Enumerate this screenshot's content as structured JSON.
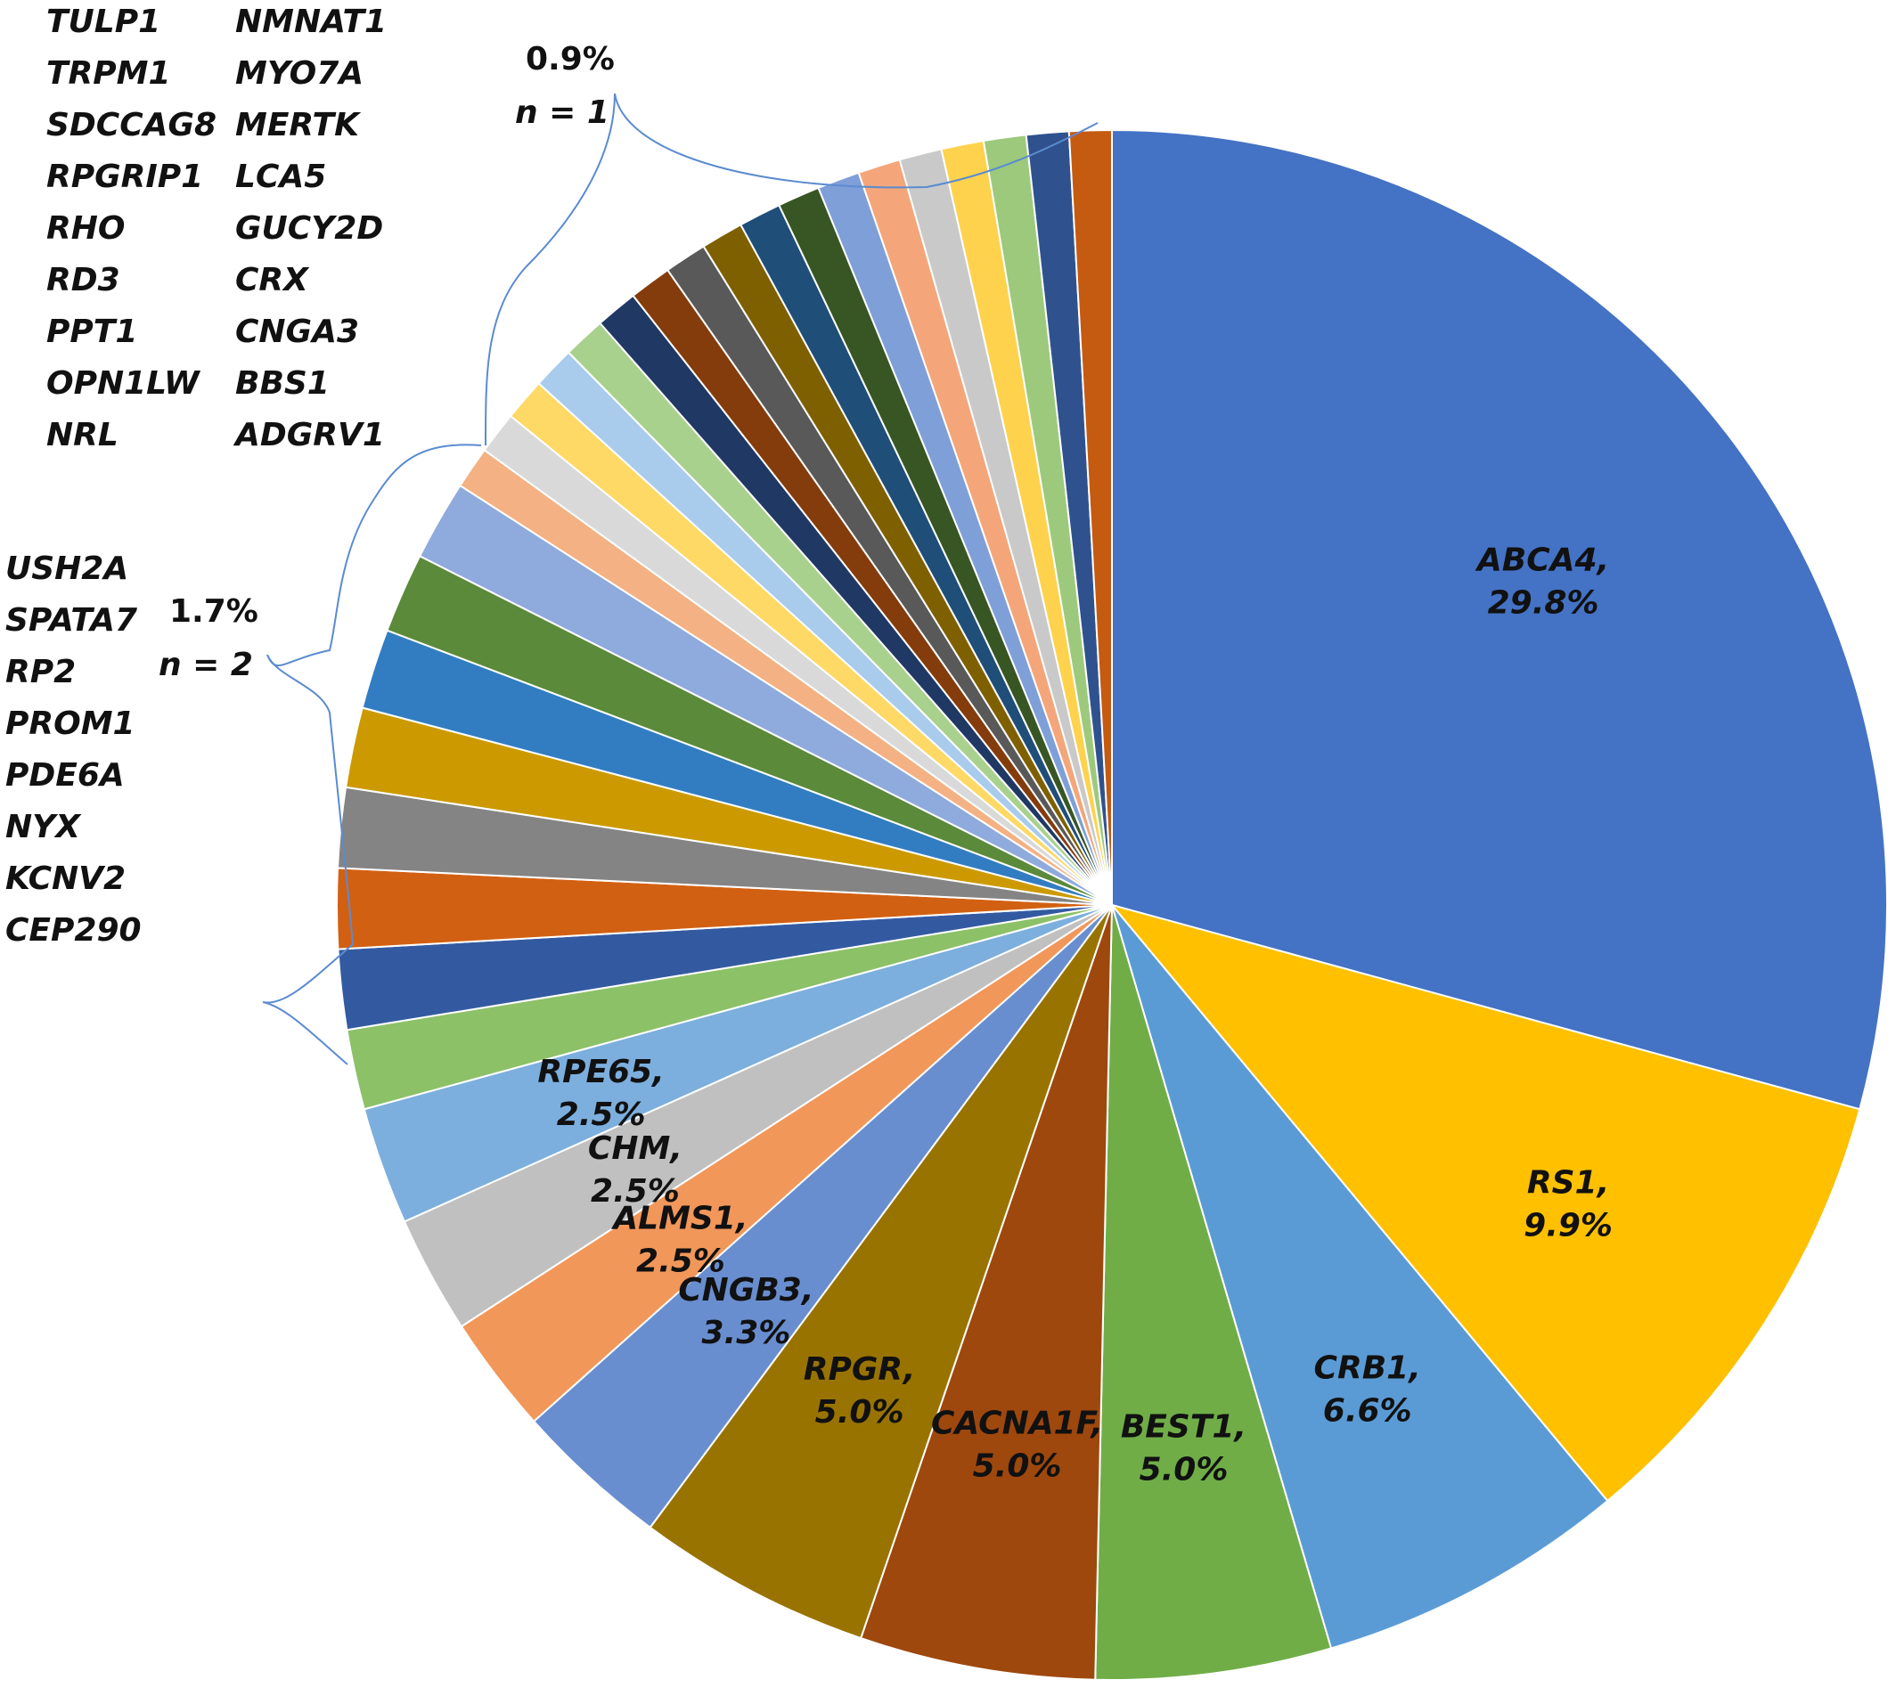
{
  "chart_data": {
    "type": "pie",
    "start_angle_deg": 0,
    "direction": "clockwise",
    "slices": [
      {
        "name": "ABCA4",
        "label": "ABCA4,",
        "pct_label": "29.8%",
        "value": 29.8,
        "color": "#4472c4"
      },
      {
        "name": "RS1",
        "label": "RS1,",
        "pct_label": "9.9%",
        "value": 9.9,
        "color": "#ffc000"
      },
      {
        "name": "CRB1",
        "label": "CRB1,",
        "pct_label": "6.6%",
        "value": 6.6,
        "color": "#5b9bd5"
      },
      {
        "name": "BEST1",
        "label": "BEST1,",
        "pct_label": "5.0%",
        "value": 5.0,
        "color": "#70ad47"
      },
      {
        "name": "CACNA1F",
        "label": "CACNA1F,",
        "pct_label": "5.0%",
        "value": 5.0,
        "color": "#9e480e"
      },
      {
        "name": "RPGR",
        "label": "RPGR,",
        "pct_label": "5.0%",
        "value": 5.0,
        "color": "#997300"
      },
      {
        "name": "CNGB3",
        "label": "CNGB3,",
        "pct_label": "3.3%",
        "value": 3.3,
        "color": "#698ed0"
      },
      {
        "name": "ALMS1",
        "label": "ALMS1,",
        "pct_label": "2.5%",
        "value": 2.5,
        "color": "#f1975a"
      },
      {
        "name": "CHM",
        "label": "CHM,",
        "pct_label": "2.5%",
        "value": 2.5,
        "color": "#c0c0c0"
      },
      {
        "name": "RPE65",
        "label": "RPE65,",
        "pct_label": "2.5%",
        "value": 2.5,
        "color": "#7cafdd"
      },
      {
        "name": "CEP290",
        "value": 1.7,
        "color": "#8cc168"
      },
      {
        "name": "KCNV2",
        "value": 1.7,
        "color": "#335aa1"
      },
      {
        "name": "NYX",
        "value": 1.7,
        "color": "#d26012"
      },
      {
        "name": "PDE6A",
        "value": 1.7,
        "color": "#848484"
      },
      {
        "name": "PROM1",
        "value": 1.7,
        "color": "#cc9a00"
      },
      {
        "name": "RP2",
        "value": 1.7,
        "color": "#327dc2"
      },
      {
        "name": "SPATA7",
        "value": 1.7,
        "color": "#5a8a3a"
      },
      {
        "name": "USH2A",
        "value": 1.7,
        "color": "#8faadc"
      },
      {
        "name": "ADGRV1",
        "value": 0.9,
        "color": "#f4b183"
      },
      {
        "name": "NRL",
        "value": 0.9,
        "color": "#d9d9d9"
      },
      {
        "name": "BBS1",
        "value": 0.9,
        "color": "#ffd966"
      },
      {
        "name": "OPN1LW",
        "value": 0.9,
        "color": "#a9cbec"
      },
      {
        "name": "CNGA3",
        "value": 0.9,
        "color": "#a9d18e"
      },
      {
        "name": "PPT1",
        "value": 0.9,
        "color": "#203864"
      },
      {
        "name": "CRX",
        "value": 0.9,
        "color": "#843c0c"
      },
      {
        "name": "RD3",
        "value": 0.9,
        "color": "#595959"
      },
      {
        "name": "GUCY2D",
        "value": 0.9,
        "color": "#7f6000"
      },
      {
        "name": "RHO",
        "value": 0.9,
        "color": "#1f4e79"
      },
      {
        "name": "LCA5",
        "value": 0.9,
        "color": "#375623"
      },
      {
        "name": "RPGRIP1",
        "value": 0.9,
        "color": "#7f9fd8"
      },
      {
        "name": "MERTK",
        "value": 0.9,
        "color": "#f4a67a"
      },
      {
        "name": "SDCCAG8",
        "value": 0.9,
        "color": "#c9c9c9"
      },
      {
        "name": "MYO7A",
        "value": 0.9,
        "color": "#ffd24d"
      },
      {
        "name": "TRPM1",
        "value": 0.9,
        "color": "#9dc97c"
      },
      {
        "name": "NMNAT1",
        "value": 0.9,
        "color": "#2f528f"
      },
      {
        "name": "TULP1",
        "value": 0.9,
        "color": "#c55a11"
      }
    ],
    "groups": [
      {
        "pct_label": "1.7%",
        "n_label": "n = 2",
        "genes": [
          "USH2A",
          "SPATA7",
          "RP2",
          "PROM1",
          "PDE6A",
          "NYX",
          "KCNV2",
          "CEP290"
        ]
      },
      {
        "pct_label": "0.9%",
        "n_label": "n = 1",
        "genes_col1": [
          "TULP1",
          "TRPM1",
          "SDCCAG8",
          "RPGRIP1",
          "RHO",
          "RD3",
          "PPT1",
          "OPN1LW",
          "NRL"
        ],
        "genes_col2": [
          "NMNAT1",
          "MYO7A",
          "MERTK",
          "LCA5",
          "GUCY2D",
          "CRX",
          "CNGA3",
          "BBS1",
          "ADGRV1"
        ]
      }
    ]
  }
}
